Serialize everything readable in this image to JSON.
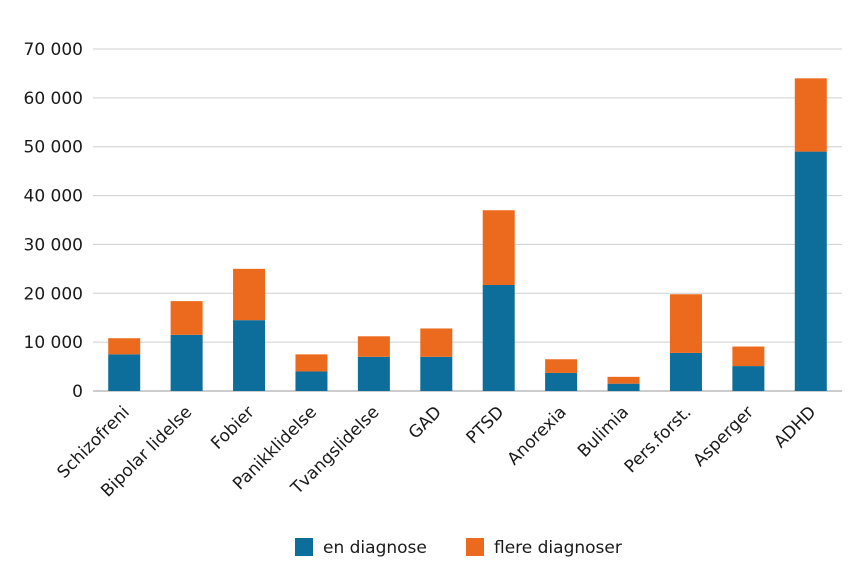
{
  "chart_data": {
    "type": "bar",
    "stacked": true,
    "categories": [
      "Schizofreni",
      "Bipolar lidelse",
      "Fobier",
      "Panikklidelse",
      "Tvangslidelse",
      "GAD",
      "PTSD",
      "Anorexia",
      "Bulimia",
      "Pers.forst.",
      "Asperger",
      "ADHD"
    ],
    "series": [
      {
        "name": "en diagnose",
        "color": "#0e6e9b",
        "values": [
          7500,
          11500,
          14500,
          4000,
          7000,
          7000,
          21700,
          3700,
          1500,
          7800,
          5100,
          49000
        ]
      },
      {
        "name": "flere diagnoser",
        "color": "#ec6a1e",
        "values": [
          3300,
          6900,
          10500,
          3500,
          4200,
          5800,
          15300,
          2800,
          1400,
          12000,
          4000,
          15000
        ]
      }
    ],
    "yticks": [
      "0",
      "10 000",
      "20 000",
      "30 000",
      "40 000",
      "50 000",
      "60 000",
      "70 000"
    ],
    "ylim": [
      0,
      70000
    ],
    "grid": true,
    "legend_position": "bottom"
  }
}
